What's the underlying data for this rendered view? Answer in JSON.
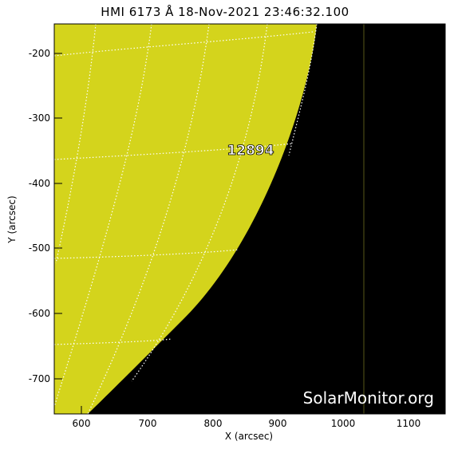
{
  "title": "HMI 6173 Å 18-Nov-2021 23:46:32.100",
  "xlabel": "X (arcsec)",
  "ylabel": "Y (arcsec)",
  "xticks": [
    "600",
    "700",
    "800",
    "900",
    "1000",
    "1100"
  ],
  "yticks": [
    "-200",
    "-300",
    "-400",
    "-500",
    "-600",
    "-700"
  ],
  "region_label": "12894",
  "watermark": "SolarMonitor.org",
  "colors": {
    "disk": "#d4d41c",
    "background": "#000000",
    "grid": "#ffffff"
  }
}
